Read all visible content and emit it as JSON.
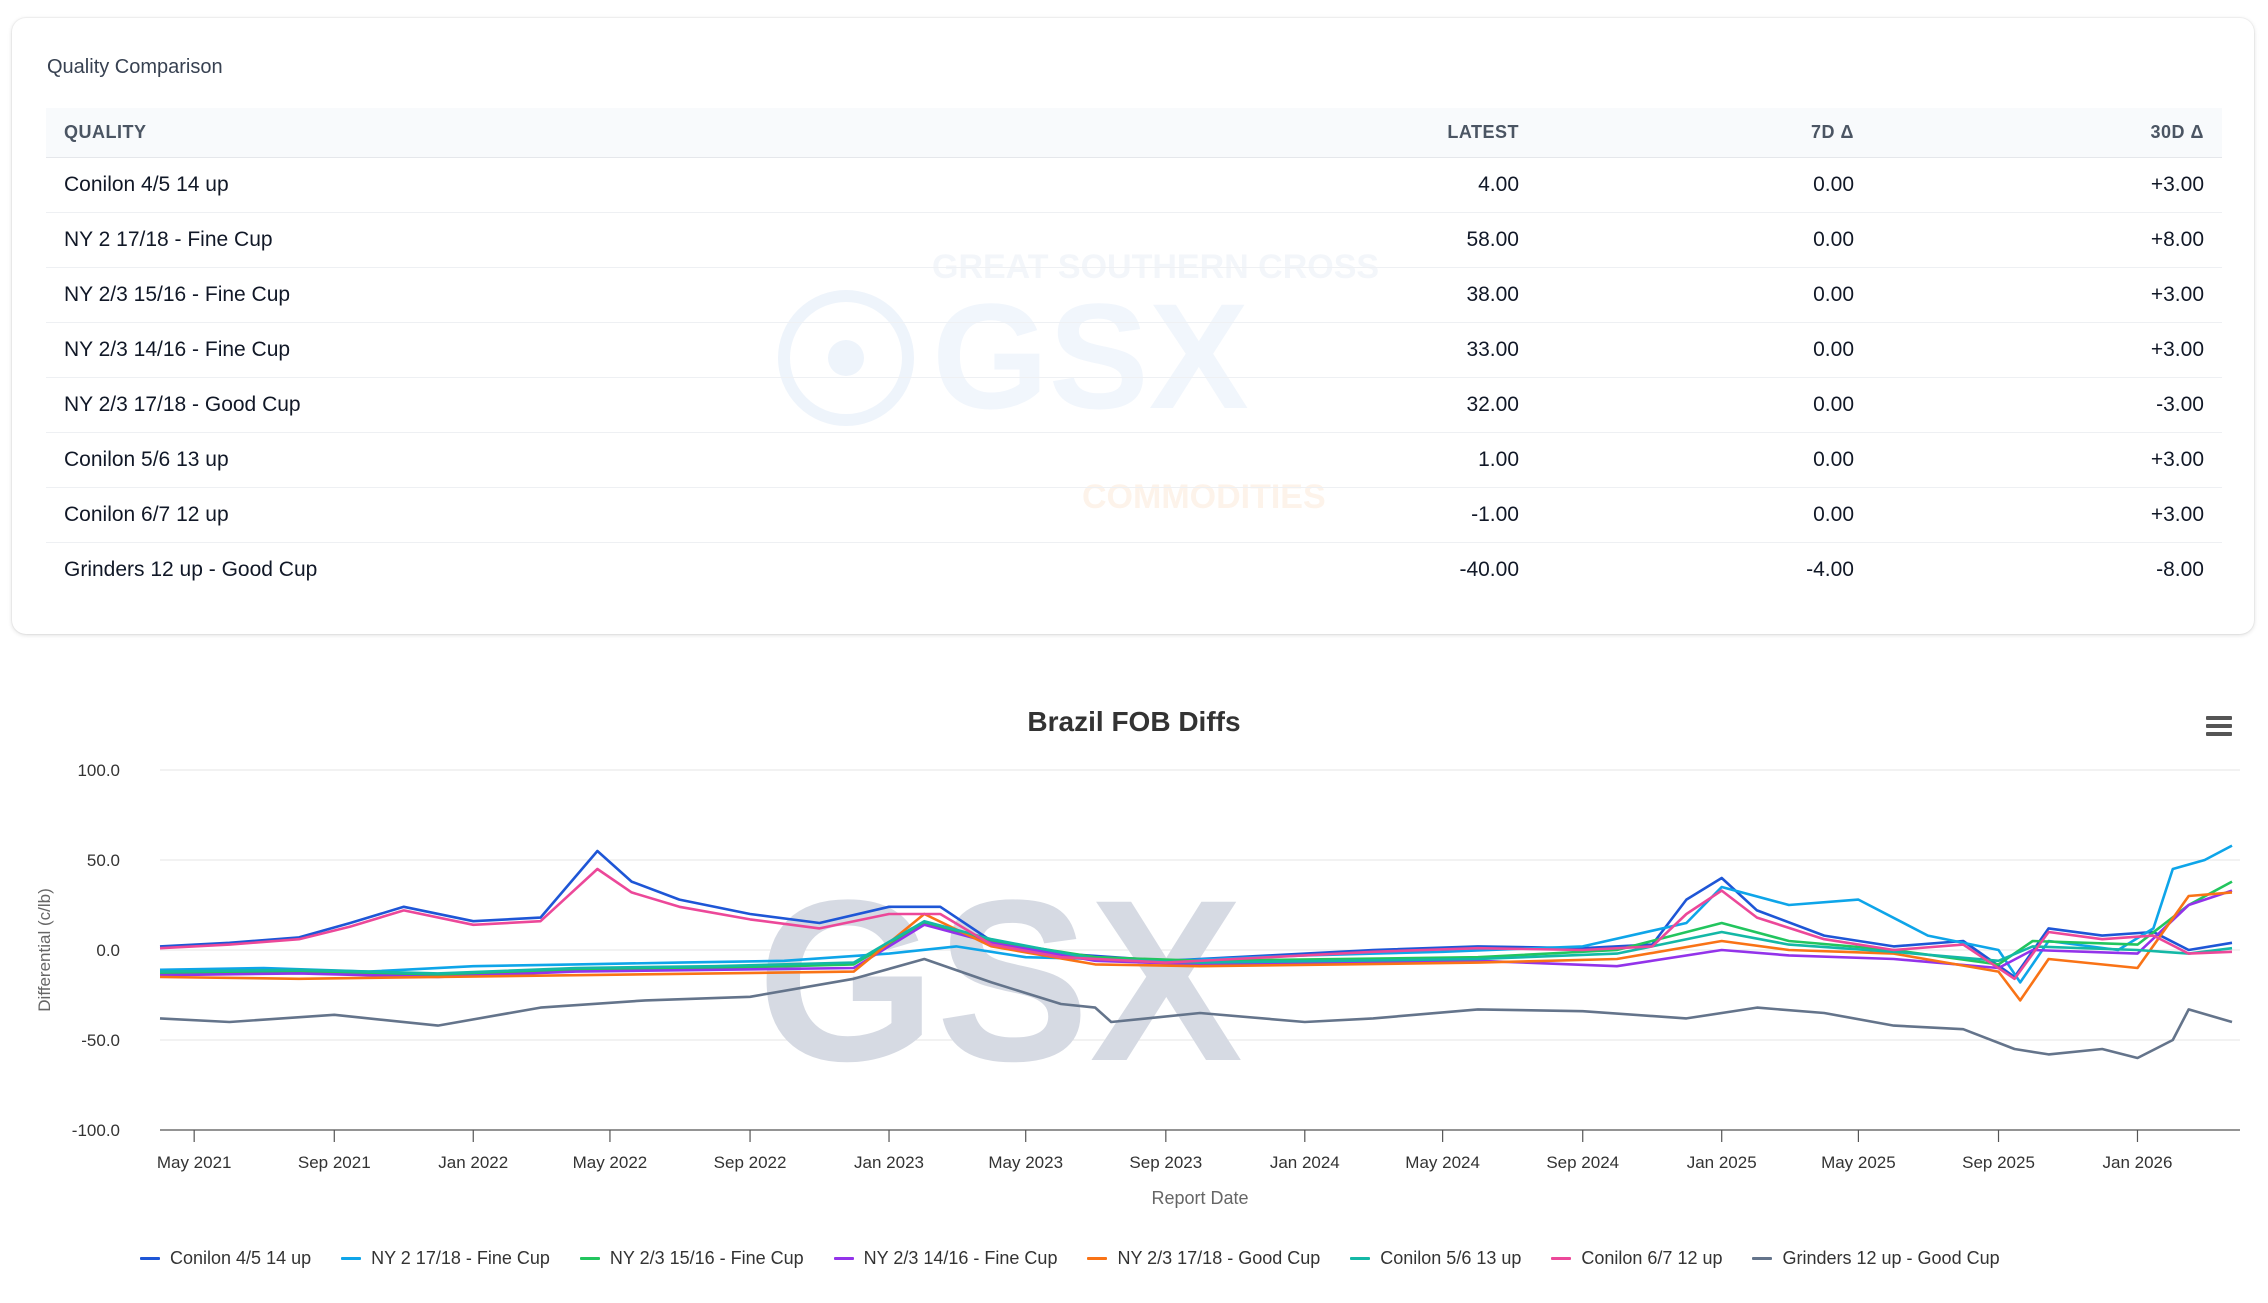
{
  "card": {
    "title": "Quality Comparison",
    "columns": [
      "QUALITY",
      "LATEST",
      "7D Δ",
      "30D Δ"
    ],
    "rows": [
      {
        "quality": "Conilon 4/5 14 up",
        "latest": "4.00",
        "d7": "0.00",
        "d30": "+3.00",
        "d7_sign": "zero",
        "d30_sign": "pos"
      },
      {
        "quality": "NY 2 17/18 - Fine Cup",
        "latest": "58.00",
        "d7": "0.00",
        "d30": "+8.00",
        "d7_sign": "zero",
        "d30_sign": "pos"
      },
      {
        "quality": "NY 2/3 15/16 - Fine Cup",
        "latest": "38.00",
        "d7": "0.00",
        "d30": "+3.00",
        "d7_sign": "zero",
        "d30_sign": "pos"
      },
      {
        "quality": "NY 2/3 14/16 - Fine Cup",
        "latest": "33.00",
        "d7": "0.00",
        "d30": "+3.00",
        "d7_sign": "zero",
        "d30_sign": "pos"
      },
      {
        "quality": "NY 2/3 17/18 - Good Cup",
        "latest": "32.00",
        "d7": "0.00",
        "d30": "-3.00",
        "d7_sign": "zero",
        "d30_sign": "neg"
      },
      {
        "quality": "Conilon 5/6 13 up",
        "latest": "1.00",
        "d7": "0.00",
        "d30": "+3.00",
        "d7_sign": "zero",
        "d30_sign": "pos"
      },
      {
        "quality": "Conilon 6/7 12 up",
        "latest": "-1.00",
        "d7": "0.00",
        "d30": "+3.00",
        "d7_sign": "zero",
        "d30_sign": "pos"
      },
      {
        "quality": "Grinders 12 up - Good Cup",
        "latest": "-40.00",
        "d7": "-4.00",
        "d30": "-8.00",
        "d7_sign": "neg",
        "d30_sign": "neg"
      }
    ],
    "watermark": {
      "line1": "GREAT SOUTHERN CROSS",
      "logo": "GSX",
      "line2": "COMMODITIES"
    }
  },
  "colors": {
    "positive": "#16a34a",
    "negative": "#e11d48"
  },
  "chart_data": {
    "type": "line",
    "title": "Brazil FOB Diffs",
    "xlabel": "Report Date",
    "ylabel": "Differential (c/lb)",
    "ylim": [
      -100,
      100
    ],
    "yticks": [
      100,
      50,
      0,
      -50,
      -100
    ],
    "ytick_labels": [
      "100.0",
      "50.0",
      "0.0",
      "-50.0",
      "-100.0"
    ],
    "xticks": [
      "May 2021",
      "Sep 2021",
      "Jan 2022",
      "May 2022",
      "Sep 2022",
      "Jan 2023",
      "May 2023",
      "Sep 2023",
      "Jan 2024",
      "May 2024",
      "Sep 2024",
      "Jan 2025",
      "May 2025",
      "Sep 2025",
      "Jan 2026"
    ],
    "xlim": [
      "2021-04-01",
      "2026-04-01"
    ],
    "grid": true,
    "legend_position": "bottom",
    "watermark": "GSX",
    "series": [
      {
        "name": "Conilon 4/5 14 up",
        "color": "#1e56d6",
        "points": [
          [
            "2021-04-01",
            2
          ],
          [
            "2021-06-01",
            4
          ],
          [
            "2021-08-01",
            7
          ],
          [
            "2021-09-15",
            15
          ],
          [
            "2021-11-01",
            24
          ],
          [
            "2022-01-01",
            16
          ],
          [
            "2022-03-01",
            18
          ],
          [
            "2022-04-20",
            55
          ],
          [
            "2022-05-20",
            38
          ],
          [
            "2022-07-01",
            28
          ],
          [
            "2022-09-01",
            20
          ],
          [
            "2022-11-01",
            15
          ],
          [
            "2023-01-01",
            24
          ],
          [
            "2023-02-15",
            24
          ],
          [
            "2023-04-01",
            5
          ],
          [
            "2023-06-01",
            -2
          ],
          [
            "2023-09-01",
            -6
          ],
          [
            "2023-12-01",
            -3
          ],
          [
            "2024-03-01",
            0
          ],
          [
            "2024-06-01",
            2
          ],
          [
            "2024-09-01",
            1
          ],
          [
            "2024-11-01",
            3
          ],
          [
            "2024-12-01",
            28
          ],
          [
            "2025-01-01",
            40
          ],
          [
            "2025-02-01",
            22
          ],
          [
            "2025-04-01",
            8
          ],
          [
            "2025-06-01",
            2
          ],
          [
            "2025-08-01",
            5
          ],
          [
            "2025-09-15",
            -15
          ],
          [
            "2025-10-15",
            12
          ],
          [
            "2025-12-01",
            8
          ],
          [
            "2026-01-15",
            10
          ],
          [
            "2026-02-15",
            0
          ],
          [
            "2026-03-25",
            4
          ]
        ]
      },
      {
        "name": "NY 2 17/18 - Fine Cup",
        "color": "#0ea5e9",
        "points": [
          [
            "2021-04-01",
            -11
          ],
          [
            "2021-07-01",
            -10
          ],
          [
            "2021-10-01",
            -12
          ],
          [
            "2022-01-01",
            -9
          ],
          [
            "2022-04-01",
            -8
          ],
          [
            "2022-07-01",
            -7
          ],
          [
            "2022-10-01",
            -6
          ],
          [
            "2023-01-01",
            -2
          ],
          [
            "2023-03-01",
            2
          ],
          [
            "2023-05-01",
            -4
          ],
          [
            "2023-09-01",
            -6
          ],
          [
            "2024-01-01",
            -3
          ],
          [
            "2024-05-01",
            -1
          ],
          [
            "2024-09-01",
            2
          ],
          [
            "2024-12-01",
            15
          ],
          [
            "2025-01-01",
            35
          ],
          [
            "2025-03-01",
            25
          ],
          [
            "2025-05-01",
            28
          ],
          [
            "2025-07-01",
            8
          ],
          [
            "2025-09-01",
            0
          ],
          [
            "2025-09-20",
            -18
          ],
          [
            "2025-10-15",
            5
          ],
          [
            "2025-12-15",
            0
          ],
          [
            "2026-01-15",
            12
          ],
          [
            "2026-02-01",
            45
          ],
          [
            "2026-03-01",
            50
          ],
          [
            "2026-03-25",
            58
          ]
        ]
      },
      {
        "name": "NY 2/3 15/16 - Fine Cup",
        "color": "#22c55e",
        "points": [
          [
            "2021-04-01",
            -13
          ],
          [
            "2021-08-01",
            -12
          ],
          [
            "2021-12-01",
            -14
          ],
          [
            "2022-04-01",
            -11
          ],
          [
            "2022-08-01",
            -10
          ],
          [
            "2022-12-01",
            -8
          ],
          [
            "2023-02-01",
            15
          ],
          [
            "2023-04-01",
            5
          ],
          [
            "2023-07-01",
            -4
          ],
          [
            "2023-10-01",
            -6
          ],
          [
            "2024-02-01",
            -5
          ],
          [
            "2024-06-01",
            -4
          ],
          [
            "2024-10-01",
            0
          ],
          [
            "2025-01-01",
            15
          ],
          [
            "2025-03-01",
            5
          ],
          [
            "2025-06-01",
            0
          ],
          [
            "2025-09-01",
            -8
          ],
          [
            "2025-10-01",
            5
          ],
          [
            "2026-01-01",
            3
          ],
          [
            "2026-02-15",
            25
          ],
          [
            "2026-03-25",
            38
          ]
        ]
      },
      {
        "name": "NY 2/3 14/16 - Fine Cup",
        "color": "#9333ea",
        "points": [
          [
            "2021-04-01",
            -14
          ],
          [
            "2021-08-01",
            -13
          ],
          [
            "2021-12-01",
            -15
          ],
          [
            "2022-04-01",
            -12
          ],
          [
            "2022-08-01",
            -11
          ],
          [
            "2022-12-01",
            -10
          ],
          [
            "2023-02-01",
            14
          ],
          [
            "2023-04-01",
            4
          ],
          [
            "2023-07-01",
            -6
          ],
          [
            "2023-10-01",
            -8
          ],
          [
            "2024-02-01",
            -7
          ],
          [
            "2024-06-01",
            -6
          ],
          [
            "2024-10-01",
            -9
          ],
          [
            "2025-01-01",
            0
          ],
          [
            "2025-03-01",
            -3
          ],
          [
            "2025-06-01",
            -5
          ],
          [
            "2025-09-01",
            -10
          ],
          [
            "2025-10-01",
            0
          ],
          [
            "2026-01-01",
            -2
          ],
          [
            "2026-02-15",
            25
          ],
          [
            "2026-03-25",
            33
          ]
        ]
      },
      {
        "name": "NY 2/3 17/18 - Good Cup",
        "color": "#f97316",
        "points": [
          [
            "2021-04-01",
            -15
          ],
          [
            "2021-08-01",
            -16
          ],
          [
            "2021-12-01",
            -15
          ],
          [
            "2022-04-01",
            -14
          ],
          [
            "2022-08-01",
            -13
          ],
          [
            "2022-12-01",
            -12
          ],
          [
            "2023-02-01",
            20
          ],
          [
            "2023-04-01",
            2
          ],
          [
            "2023-07-01",
            -8
          ],
          [
            "2023-10-01",
            -9
          ],
          [
            "2024-02-01",
            -8
          ],
          [
            "2024-06-01",
            -7
          ],
          [
            "2024-10-01",
            -5
          ],
          [
            "2025-01-01",
            5
          ],
          [
            "2025-03-01",
            0
          ],
          [
            "2025-06-01",
            -2
          ],
          [
            "2025-09-01",
            -12
          ],
          [
            "2025-09-20",
            -28
          ],
          [
            "2025-10-15",
            -5
          ],
          [
            "2026-01-01",
            -10
          ],
          [
            "2026-02-15",
            30
          ],
          [
            "2026-03-25",
            32
          ]
        ]
      },
      {
        "name": "Conilon 5/6 13 up",
        "color": "#14b8a6",
        "points": [
          [
            "2021-04-01",
            -12
          ],
          [
            "2021-08-01",
            -11
          ],
          [
            "2021-12-01",
            -13
          ],
          [
            "2022-04-01",
            -10
          ],
          [
            "2022-08-01",
            -9
          ],
          [
            "2022-12-01",
            -7
          ],
          [
            "2023-02-01",
            16
          ],
          [
            "2023-04-01",
            6
          ],
          [
            "2023-07-01",
            -5
          ],
          [
            "2023-10-01",
            -7
          ],
          [
            "2024-02-01",
            -6
          ],
          [
            "2024-06-01",
            -5
          ],
          [
            "2024-10-01",
            -2
          ],
          [
            "2025-01-01",
            10
          ],
          [
            "2025-03-01",
            3
          ],
          [
            "2025-06-01",
            -1
          ],
          [
            "2025-09-01",
            -6
          ],
          [
            "2025-10-01",
            2
          ],
          [
            "2026-01-01",
            0
          ],
          [
            "2026-02-15",
            -2
          ],
          [
            "2026-03-25",
            1
          ]
        ]
      },
      {
        "name": "Conilon 6/7 12 up",
        "color": "#ec4899",
        "points": [
          [
            "2021-04-01",
            1
          ],
          [
            "2021-06-01",
            3
          ],
          [
            "2021-08-01",
            6
          ],
          [
            "2021-09-15",
            13
          ],
          [
            "2021-11-01",
            22
          ],
          [
            "2022-01-01",
            14
          ],
          [
            "2022-03-01",
            16
          ],
          [
            "2022-04-20",
            45
          ],
          [
            "2022-05-20",
            32
          ],
          [
            "2022-07-01",
            24
          ],
          [
            "2022-09-01",
            17
          ],
          [
            "2022-11-01",
            12
          ],
          [
            "2023-01-01",
            20
          ],
          [
            "2023-02-15",
            20
          ],
          [
            "2023-04-01",
            3
          ],
          [
            "2023-06-01",
            -4
          ],
          [
            "2023-09-01",
            -7
          ],
          [
            "2023-12-01",
            -4
          ],
          [
            "2024-03-01",
            -1
          ],
          [
            "2024-06-01",
            1
          ],
          [
            "2024-09-01",
            0
          ],
          [
            "2024-11-01",
            2
          ],
          [
            "2024-12-01",
            20
          ],
          [
            "2025-01-01",
            33
          ],
          [
            "2025-02-01",
            18
          ],
          [
            "2025-04-01",
            6
          ],
          [
            "2025-06-01",
            0
          ],
          [
            "2025-08-01",
            3
          ],
          [
            "2025-09-15",
            -16
          ],
          [
            "2025-10-15",
            10
          ],
          [
            "2025-12-01",
            6
          ],
          [
            "2026-01-15",
            8
          ],
          [
            "2026-02-15",
            -2
          ],
          [
            "2026-03-25",
            -1
          ]
        ]
      },
      {
        "name": "Grinders 12 up - Good Cup",
        "color": "#64748b",
        "points": [
          [
            "2021-04-01",
            -38
          ],
          [
            "2021-06-01",
            -40
          ],
          [
            "2021-09-01",
            -36
          ],
          [
            "2021-12-01",
            -42
          ],
          [
            "2022-03-01",
            -32
          ],
          [
            "2022-06-01",
            -28
          ],
          [
            "2022-09-01",
            -26
          ],
          [
            "2022-12-01",
            -16
          ],
          [
            "2023-02-01",
            -5
          ],
          [
            "2023-04-01",
            -18
          ],
          [
            "2023-06-01",
            -30
          ],
          [
            "2023-07-01",
            -32
          ],
          [
            "2023-07-15",
            -40
          ],
          [
            "2023-10-01",
            -35
          ],
          [
            "2024-01-01",
            -40
          ],
          [
            "2024-03-01",
            -38
          ],
          [
            "2024-06-01",
            -33
          ],
          [
            "2024-09-01",
            -34
          ],
          [
            "2024-12-01",
            -38
          ],
          [
            "2025-02-01",
            -32
          ],
          [
            "2025-04-01",
            -35
          ],
          [
            "2025-06-01",
            -42
          ],
          [
            "2025-08-01",
            -44
          ],
          [
            "2025-09-15",
            -55
          ],
          [
            "2025-10-15",
            -58
          ],
          [
            "2025-12-01",
            -55
          ],
          [
            "2026-01-01",
            -60
          ],
          [
            "2026-02-01",
            -50
          ],
          [
            "2026-02-15",
            -33
          ],
          [
            "2026-03-25",
            -40
          ]
        ]
      }
    ]
  }
}
